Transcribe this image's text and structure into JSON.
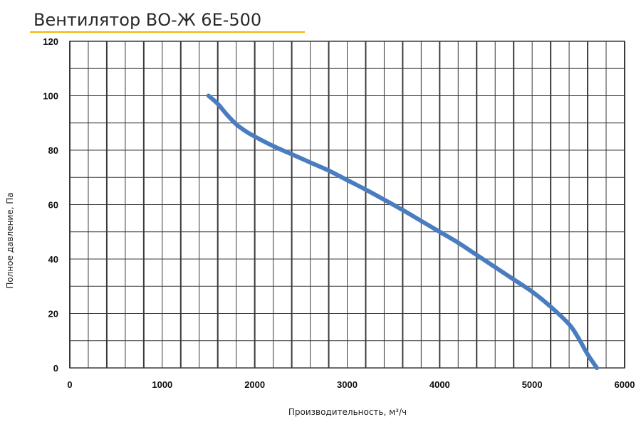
{
  "title": "Вентилятор ВО-Ж 6Е-500",
  "colors": {
    "accent": "#f5b400",
    "series": "#4a7cc0",
    "grid": "#3a3a3a"
  },
  "chart_data": {
    "type": "line",
    "title": "Вентилятор ВО-Ж 6Е-500",
    "xlabel": "Производительность, м³/ч",
    "ylabel": "Полное давление, Па",
    "xlim": [
      0,
      6000
    ],
    "ylim": [
      0,
      120
    ],
    "x_ticks": [
      "0",
      "1000",
      "2000",
      "3000",
      "4000",
      "5000",
      "6000"
    ],
    "y_ticks": [
      "0",
      "20",
      "40",
      "60",
      "80",
      "100",
      "120"
    ],
    "x_tick_values": [
      0,
      1000,
      2000,
      3000,
      4000,
      5000,
      6000
    ],
    "y_tick_values": [
      0,
      20,
      40,
      60,
      80,
      100,
      120
    ],
    "grid": true,
    "series": [
      {
        "x": [
          1500,
          1600,
          1700,
          1800,
          1900,
          2000,
          2200,
          2400,
          2600,
          2800,
          3000,
          3200,
          3400,
          3600,
          3800,
          4000,
          4200,
          4400,
          4600,
          4800,
          5000,
          5200,
          5400,
          5500,
          5600,
          5700
        ],
        "y": [
          100,
          97,
          93,
          89.5,
          87,
          85,
          81.5,
          78.5,
          75.5,
          72.5,
          69,
          65.5,
          61.8,
          58,
          54,
          50,
          46,
          41.5,
          37,
          32.5,
          28,
          22.5,
          16,
          11,
          5,
          0
        ]
      }
    ]
  }
}
